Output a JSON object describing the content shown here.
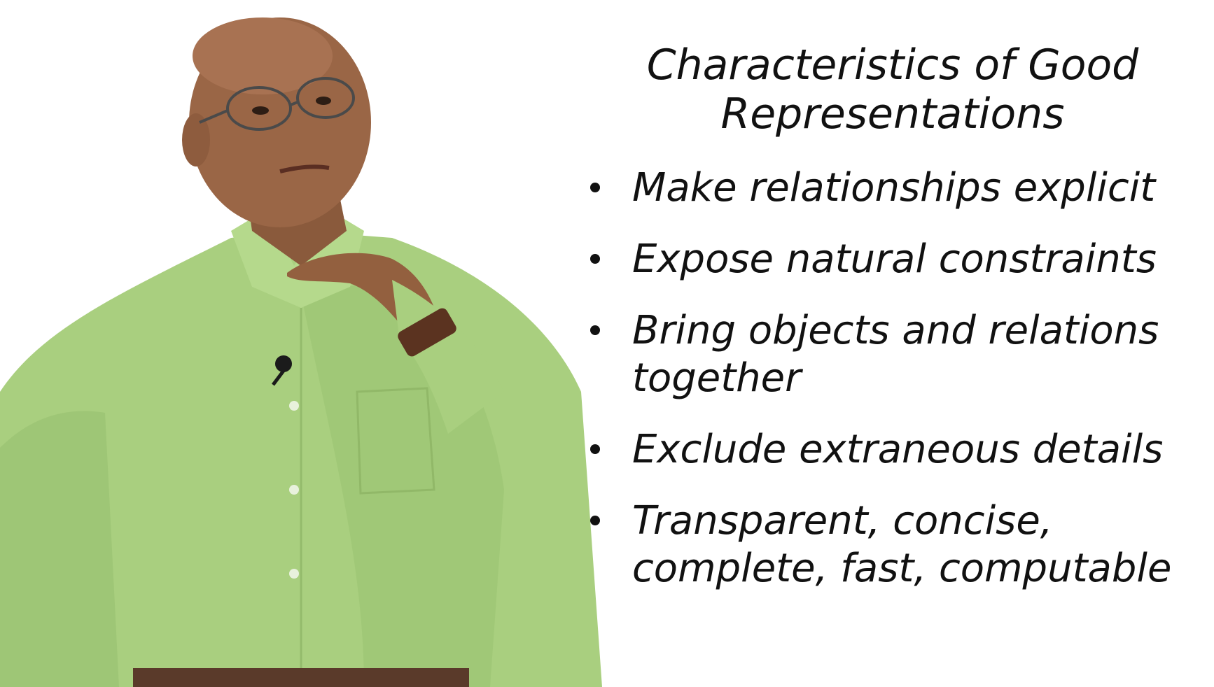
{
  "slide": {
    "title_line1": "Characteristics of Good",
    "title_line2": "Representations",
    "bullets": [
      {
        "lines": [
          "Make relationships explicit"
        ]
      },
      {
        "lines": [
          "Expose natural constraints"
        ]
      },
      {
        "lines": [
          "Bring objects and relations",
          "together"
        ]
      },
      {
        "lines": [
          "Exclude extraneous details"
        ]
      },
      {
        "lines": [
          "Transparent, concise,",
          "complete, fast, computable"
        ]
      }
    ]
  },
  "colors": {
    "background": "#ffffff",
    "text": "#111111",
    "shirt": "#a9cf7f"
  }
}
